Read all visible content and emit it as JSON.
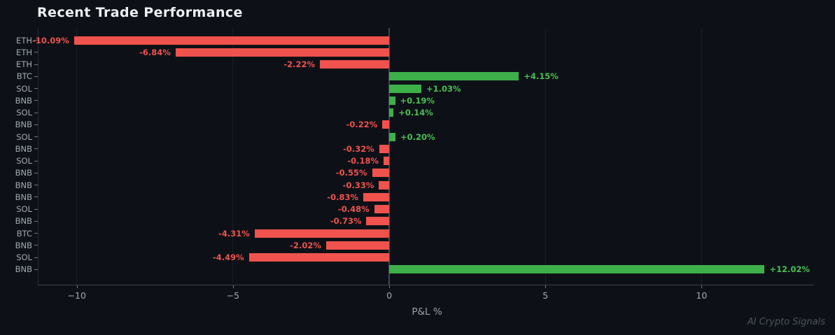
{
  "watermark": "AI Crypto Signals",
  "chart_data": {
    "type": "bar",
    "orientation": "horizontal",
    "title": "Recent Trade Performance",
    "xlabel": "P&L %",
    "categories": [
      "ETH",
      "ETH",
      "ETH",
      "BTC",
      "SOL",
      "BNB",
      "SOL",
      "BNB",
      "SOL",
      "BNB",
      "SOL",
      "BNB",
      "BNB",
      "BNB",
      "SOL",
      "BNB",
      "BTC",
      "BNB",
      "SOL",
      "BNB"
    ],
    "values": [
      -10.09,
      -6.84,
      -2.22,
      4.15,
      1.03,
      0.19,
      0.14,
      -0.22,
      0.2,
      -0.32,
      -0.18,
      -0.55,
      -0.33,
      -0.83,
      -0.48,
      -0.73,
      -4.31,
      -2.02,
      -4.49,
      12.02
    ],
    "labels": [
      "-10.09%",
      "-6.84%",
      "-2.22%",
      "+4.15%",
      "+1.03%",
      "+0.19%",
      "+0.14%",
      "-0.22%",
      "+0.20%",
      "-0.32%",
      "-0.18%",
      "-0.55%",
      "-0.33%",
      "-0.83%",
      "-0.48%",
      "-0.73%",
      "-4.31%",
      "-2.02%",
      "-4.49%",
      "+12.02%"
    ],
    "xticks": [
      -10,
      -5,
      0,
      5,
      10
    ],
    "xtick_labels": [
      "−10",
      "−5",
      "0",
      "5",
      "10"
    ],
    "xlim": [
      -11.25,
      13.6
    ],
    "grid": true,
    "legend": false,
    "colors": {
      "background": "#0d1117",
      "positive_bar": "#3db04a",
      "negative_bar": "#f0524d",
      "positive_text": "#4abf52",
      "negative_text": "#f0524d",
      "axis_text": "#a3a9b2",
      "title_text": "#eef1f4"
    }
  }
}
